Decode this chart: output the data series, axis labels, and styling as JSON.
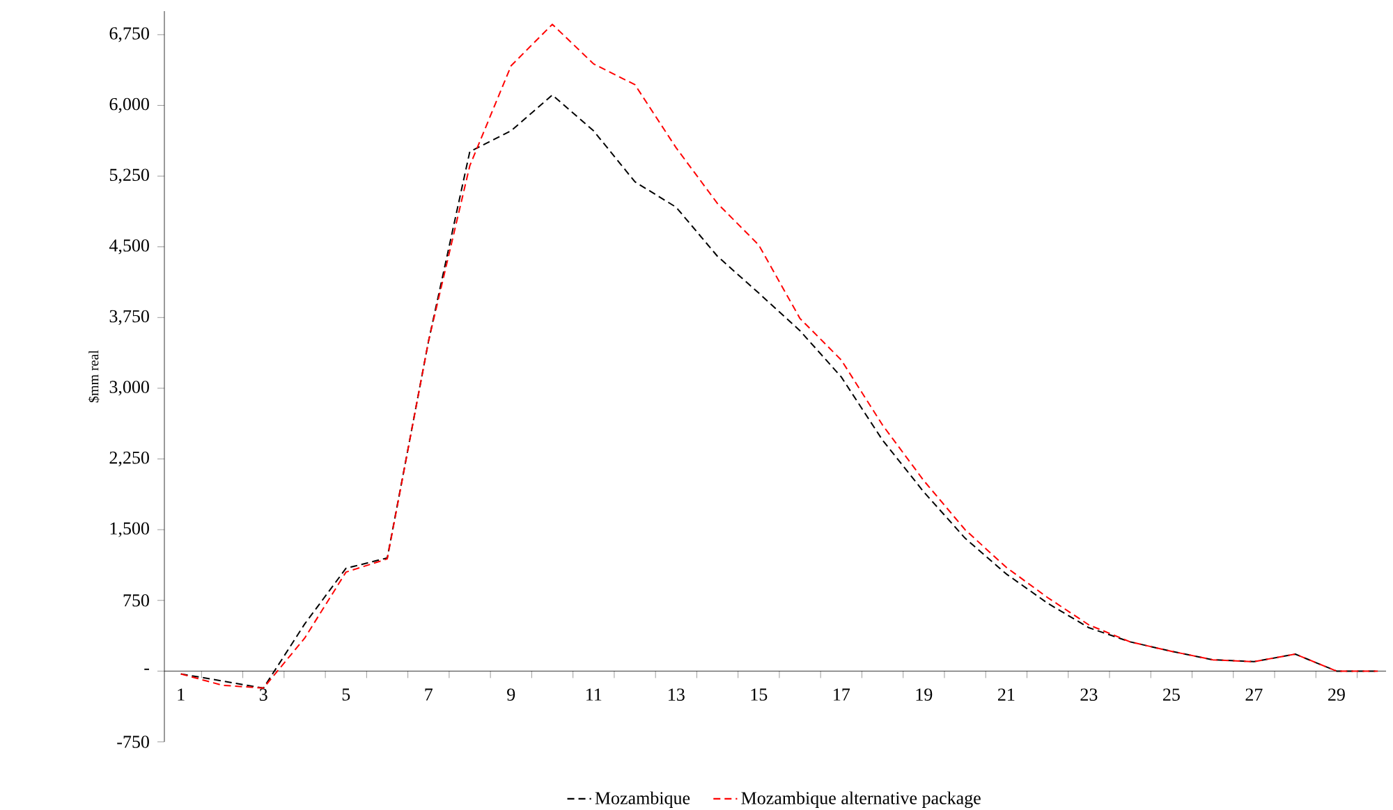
{
  "chart_data": {
    "type": "line",
    "ylabel": "$mm real",
    "categories": [
      "1",
      null,
      "3",
      null,
      "5",
      null,
      "7",
      null,
      "9",
      null,
      "11",
      null,
      "13",
      null,
      "15",
      null,
      "17",
      null,
      "19",
      null,
      "21",
      null,
      "23",
      null,
      "25",
      null,
      "27",
      null,
      "29",
      null
    ],
    "series": [
      {
        "name": "Mozambique",
        "color": "#000000",
        "values": [
          -30,
          null,
          -180,
          500,
          1090,
          1200,
          3500,
          5510,
          5730,
          6110,
          5730,
          5190,
          4920,
          4400,
          4010,
          3610,
          3120,
          2450,
          1900,
          1410,
          1030,
          720,
          460,
          310,
          210,
          120,
          100,
          180,
          0,
          0
        ]
      },
      {
        "name": "Mozambique alternative package",
        "color": "#ff0000",
        "values": [
          -30,
          -150,
          -180,
          350,
          1050,
          1190,
          3500,
          5360,
          6420,
          6860,
          6440,
          6220,
          5550,
          4960,
          4520,
          3740,
          3300,
          2610,
          2020,
          1500,
          1100,
          780,
          490,
          310,
          210,
          120,
          100,
          180,
          0,
          0
        ]
      }
    ],
    "ylim": [
      -750,
      7000
    ],
    "yticks": [
      {
        "value": -750,
        "label": "-750"
      },
      {
        "value": 0,
        "label": "-"
      },
      750,
      {
        "value": 1500,
        "label": "1,500"
      },
      {
        "value": 2250,
        "label": "2,250"
      },
      {
        "value": 3000,
        "label": "3,000"
      },
      {
        "value": 3750,
        "label": "3,750"
      },
      {
        "value": 4500,
        "label": "4,500"
      },
      {
        "value": 5250,
        "label": "5,250"
      },
      {
        "value": 6000,
        "label": "6,000"
      },
      {
        "value": 6750,
        "label": "6,750"
      }
    ],
    "grid": false,
    "legend": "bottom",
    "marker": "none",
    "line_style": "dashed"
  }
}
